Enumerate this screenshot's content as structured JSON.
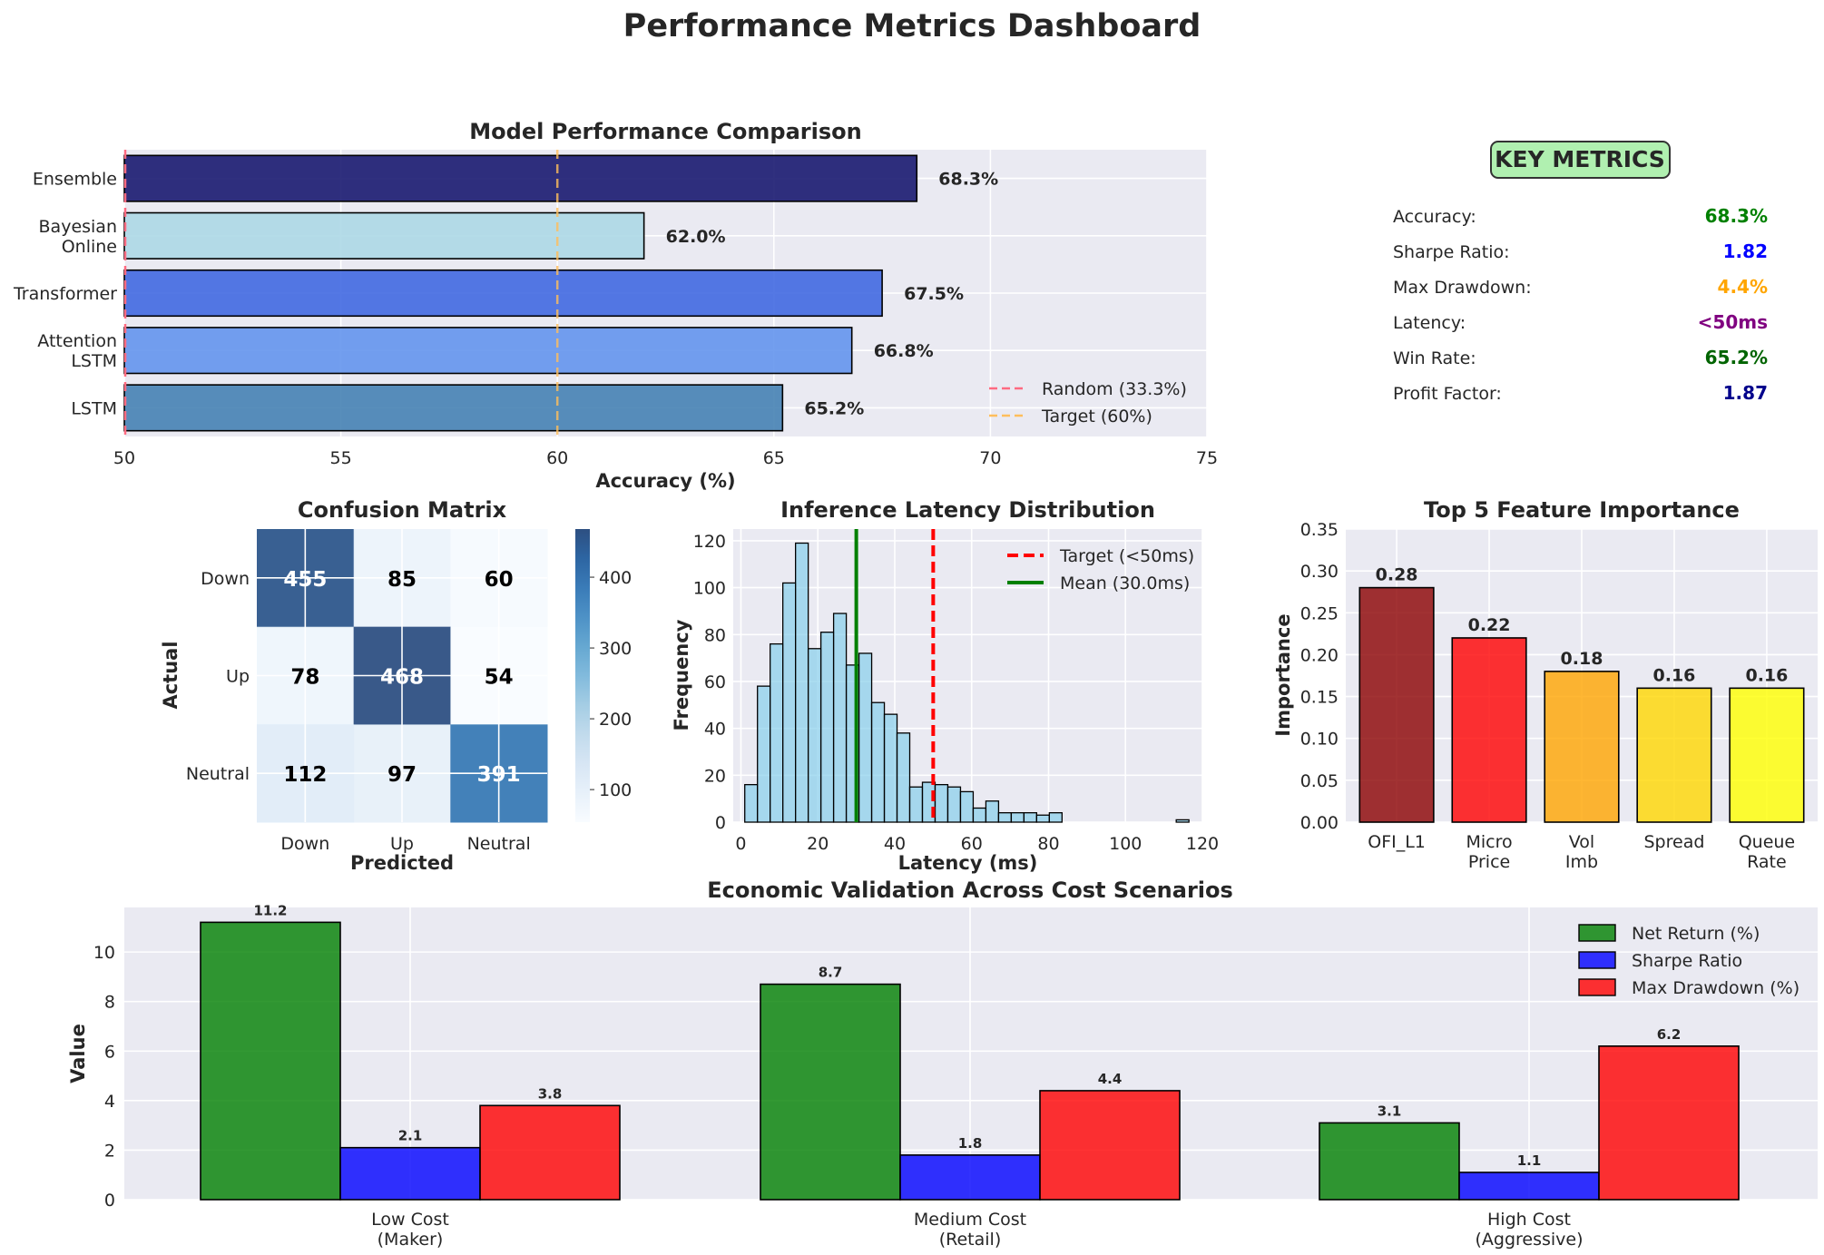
{
  "title": "Performance Metrics Dashboard",
  "chart_data": [
    {
      "type": "bar",
      "orientation": "horizontal",
      "title": "Model Performance Comparison",
      "xlabel": "Accuracy (%)",
      "ylabel": "",
      "xlim": [
        50,
        75
      ],
      "xticks": [
        50,
        55,
        60,
        65,
        70,
        75
      ],
      "categories": [
        "Ensemble",
        "Bayesian\nOnline",
        "Transformer",
        "Attention\nLSTM",
        "LSTM"
      ],
      "values": [
        68.3,
        62.0,
        67.5,
        66.8,
        65.2
      ],
      "value_labels": [
        "68.3%",
        "62.0%",
        "67.5%",
        "66.8%",
        "65.2%"
      ],
      "colors": [
        "#191970",
        "#add8e6",
        "#4169e1",
        "#6495ed",
        "#4682b4"
      ],
      "reference_lines": [
        {
          "name": "Random (33.3%)",
          "value": 33.3,
          "color": "#ff6b81"
        },
        {
          "name": "Target (60%)",
          "value": 60,
          "color": "#ffbe5c"
        }
      ],
      "legend_position": "lower right"
    },
    {
      "type": "heatmap",
      "title": "Confusion Matrix",
      "xlabel": "Predicted",
      "ylabel": "Actual",
      "x_categories": [
        "Down",
        "Up",
        "Neutral"
      ],
      "y_categories": [
        "Down",
        "Up",
        "Neutral"
      ],
      "values": [
        [
          455,
          85,
          60
        ],
        [
          78,
          468,
          54
        ],
        [
          112,
          97,
          391
        ]
      ],
      "colorbar_ticks": [
        100,
        200,
        300,
        400
      ],
      "colorbar_range": [
        54,
        468
      ],
      "colormap": "Blues"
    },
    {
      "type": "histogram",
      "title": "Inference Latency Distribution",
      "xlabel": "Latency (ms)",
      "ylabel": "Frequency",
      "xlim": [
        -2,
        120
      ],
      "ylim": [
        0,
        125
      ],
      "xticks": [
        0,
        20,
        40,
        60,
        80,
        100,
        120
      ],
      "yticks": [
        0,
        20,
        40,
        60,
        80,
        100,
        120
      ],
      "bin_width": 3.3,
      "bin_start": 1,
      "counts": [
        16,
        58,
        76,
        102,
        119,
        74,
        81,
        89,
        67,
        72,
        51,
        46,
        38,
        15,
        17,
        16,
        15,
        13,
        6,
        9,
        4,
        4,
        4,
        3,
        4,
        0,
        0,
        0,
        0,
        0,
        0,
        0,
        0,
        0,
        1
      ],
      "lines": [
        {
          "name": "Target (<50ms)",
          "value": 50,
          "color": "#ff0000",
          "style": "dashed"
        },
        {
          "name": "Mean (30.0ms)",
          "value": 30,
          "color": "#008000",
          "style": "solid"
        }
      ],
      "legend_position": "upper right"
    },
    {
      "type": "bar",
      "title": "Top 5 Feature Importance",
      "xlabel": "",
      "ylabel": "Importance",
      "ylim": [
        0,
        0.35
      ],
      "yticks": [
        "0.00",
        "0.05",
        "0.10",
        "0.15",
        "0.20",
        "0.25",
        "0.30",
        "0.35"
      ],
      "categories": [
        "OFI_L1",
        "Micro\nPrice",
        "Vol\nImb",
        "Spread",
        "Queue\nRate"
      ],
      "values": [
        0.28,
        0.22,
        0.18,
        0.16,
        0.16
      ],
      "value_labels": [
        "0.28",
        "0.22",
        "0.18",
        "0.16",
        "0.16"
      ],
      "colors": [
        "#8b0000",
        "#ff0000",
        "#ffa500",
        "#ffd700",
        "#ffff00"
      ]
    },
    {
      "type": "bar",
      "title": "Economic Validation Across Cost Scenarios",
      "xlabel": "",
      "ylabel": "Value",
      "ylim": [
        0,
        11.8
      ],
      "yticks": [
        0,
        2,
        4,
        6,
        8,
        10
      ],
      "categories": [
        "Low Cost\n(Maker)",
        "Medium Cost\n(Retail)",
        "High Cost\n(Aggressive)"
      ],
      "series": [
        {
          "name": "Net Return (%)",
          "values": [
            11.2,
            8.7,
            3.1
          ],
          "color": "#008000"
        },
        {
          "name": "Sharpe Ratio",
          "values": [
            2.1,
            1.8,
            1.1
          ],
          "color": "#0000ff"
        },
        {
          "name": "Max Drawdown (%)",
          "values": [
            3.8,
            4.4,
            6.2
          ],
          "color": "#ff0000"
        }
      ],
      "legend_position": "upper right"
    }
  ],
  "key_metrics": {
    "title": "KEY METRICS",
    "items": [
      {
        "label": "Accuracy:",
        "value": "68.3%",
        "color": "#008000"
      },
      {
        "label": "Sharpe Ratio:",
        "value": "1.82",
        "color": "#0000ff"
      },
      {
        "label": "Max Drawdown:",
        "value": "4.4%",
        "color": "#ffa500"
      },
      {
        "label": "Latency:",
        "value": "<50ms",
        "color": "#800080"
      },
      {
        "label": "Win Rate:",
        "value": "65.2%",
        "color": "#006400"
      },
      {
        "label": "Profit Factor:",
        "value": "1.87",
        "color": "#00008b"
      }
    ]
  }
}
